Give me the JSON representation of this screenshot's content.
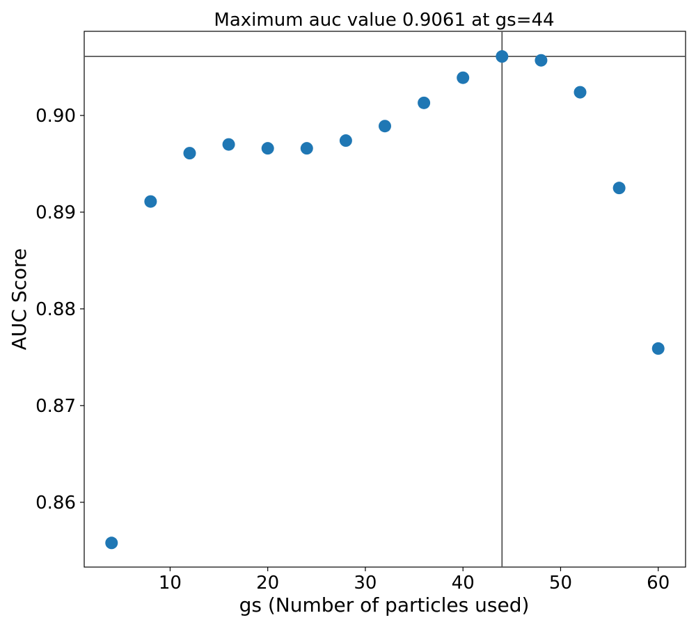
{
  "chart_data": {
    "type": "scatter",
    "title": "Maximum auc value 0.9061 at gs=44",
    "xlabel": "gs (Number of particles used)",
    "ylabel": "AUC Score",
    "xlim": [
      1.2,
      62.8
    ],
    "ylim": [
      0.8533,
      0.9087
    ],
    "xticks": [
      10,
      20,
      30,
      40,
      50,
      60
    ],
    "xtick_labels": [
      "10",
      "20",
      "30",
      "40",
      "50",
      "60"
    ],
    "yticks": [
      0.86,
      0.87,
      0.88,
      0.89,
      0.9
    ],
    "ytick_labels": [
      "0.86",
      "0.87",
      "0.88",
      "0.89",
      "0.90"
    ],
    "grid": false,
    "x": [
      4,
      8,
      12,
      16,
      20,
      24,
      28,
      32,
      36,
      40,
      44,
      48,
      52,
      56,
      60
    ],
    "y": [
      0.8558,
      0.8911,
      0.8961,
      0.897,
      0.8966,
      0.8966,
      0.8974,
      0.8989,
      0.9013,
      0.9039,
      0.9061,
      0.9057,
      0.9024,
      0.8925,
      0.8759
    ],
    "reference_lines": {
      "vertical_x": 44,
      "horizontal_y": 0.9061,
      "color": "#555555"
    },
    "marker_color": "#1f77b4"
  }
}
